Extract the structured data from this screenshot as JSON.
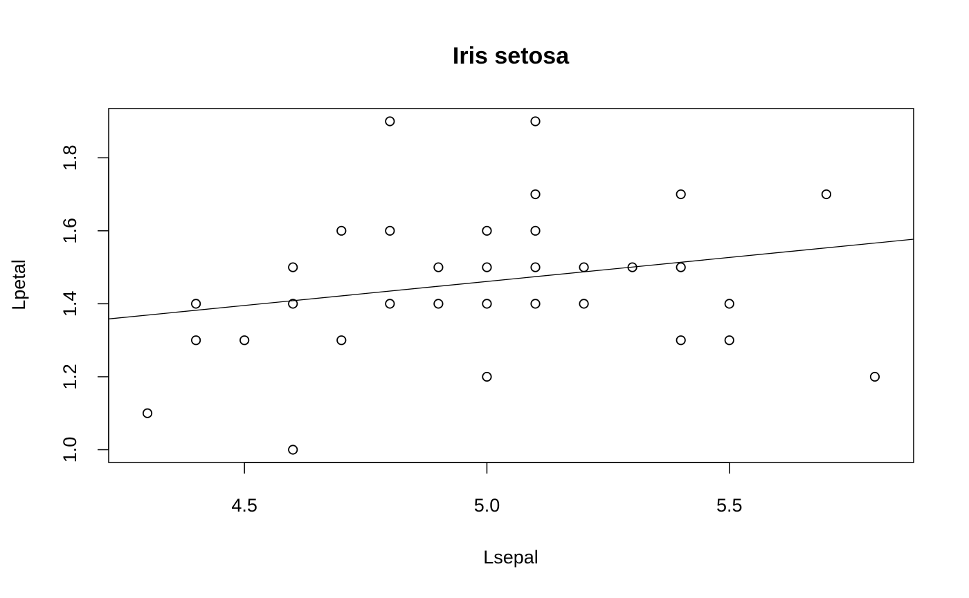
{
  "chart_data": {
    "type": "scatter",
    "title": "Iris setosa",
    "xlabel": "Lsepal",
    "ylabel": "Lpetal",
    "xlim": [
      4.22,
      5.88
    ],
    "ylim": [
      0.965,
      1.935
    ],
    "x_ticks": [
      4.5,
      5.0,
      5.5
    ],
    "x_tick_labels": [
      "4.5",
      "5.0",
      "5.5"
    ],
    "y_ticks": [
      1.0,
      1.2,
      1.4,
      1.6,
      1.8
    ],
    "y_tick_labels": [
      "1.0",
      "1.2",
      "1.4",
      "1.6",
      "1.8"
    ],
    "grid": false,
    "marker": "open-circle",
    "points": [
      [
        4.3,
        1.1
      ],
      [
        4.4,
        1.4
      ],
      [
        4.4,
        1.3
      ],
      [
        4.5,
        1.3
      ],
      [
        4.6,
        1.5
      ],
      [
        4.6,
        1.4
      ],
      [
        4.6,
        1.0
      ],
      [
        4.7,
        1.6
      ],
      [
        4.7,
        1.3
      ],
      [
        4.8,
        1.9
      ],
      [
        4.8,
        1.6
      ],
      [
        4.8,
        1.4
      ],
      [
        4.9,
        1.5
      ],
      [
        4.9,
        1.4
      ],
      [
        5.0,
        1.6
      ],
      [
        5.0,
        1.5
      ],
      [
        5.0,
        1.4
      ],
      [
        5.0,
        1.2
      ],
      [
        5.1,
        1.9
      ],
      [
        5.1,
        1.7
      ],
      [
        5.1,
        1.6
      ],
      [
        5.1,
        1.5
      ],
      [
        5.1,
        1.4
      ],
      [
        5.2,
        1.5
      ],
      [
        5.2,
        1.4
      ],
      [
        5.3,
        1.5
      ],
      [
        5.4,
        1.7
      ],
      [
        5.4,
        1.5
      ],
      [
        5.4,
        1.3
      ],
      [
        5.5,
        1.4
      ],
      [
        5.5,
        1.3
      ],
      [
        5.7,
        1.7
      ],
      [
        5.8,
        1.2
      ]
    ],
    "regression_line": {
      "intercept": 0.8031,
      "slope": 0.1316
    }
  }
}
